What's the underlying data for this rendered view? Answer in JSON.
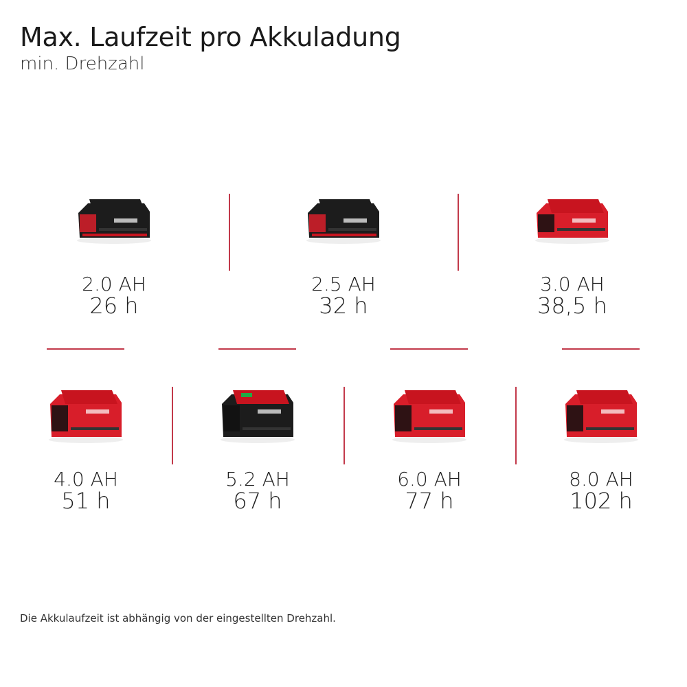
{
  "header": {
    "title": "Max. Laufzeit pro Akkuladung",
    "subtitle": "min. Drehzahl"
  },
  "accent_color": "#c2394a",
  "batteries": [
    {
      "capacity": "2.0 AH",
      "runtime": "26 h",
      "style": "black"
    },
    {
      "capacity": "2.5 AH",
      "runtime": "32 h",
      "style": "black"
    },
    {
      "capacity": "3.0 AH",
      "runtime": "38,5 h",
      "style": "red"
    },
    {
      "capacity": "4.0 AH",
      "runtime": "51 h",
      "style": "red"
    },
    {
      "capacity": "5.2 AH",
      "runtime": "67 h",
      "style": "plus"
    },
    {
      "capacity": "6.0 AH",
      "runtime": "77 h",
      "style": "red"
    },
    {
      "capacity": "8.0 AH",
      "runtime": "102 h",
      "style": "red"
    }
  ],
  "footer": {
    "note": "Die Akkulaufzeit ist abhängig von der eingestellten Drehzahl."
  }
}
